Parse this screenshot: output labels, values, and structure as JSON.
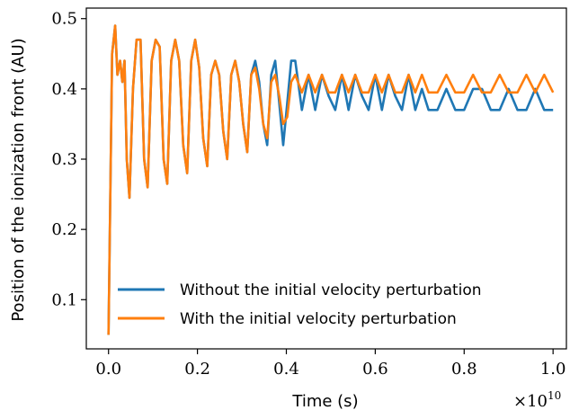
{
  "chart_data": {
    "type": "line",
    "xlabel": "Time (s)",
    "ylabel": "Position of the ionization front (AU)",
    "x_offset_label": "×10",
    "x_offset_exponent": "10",
    "xlim": [
      -0.05,
      1.03
    ],
    "ylim": [
      0.03,
      0.515
    ],
    "x_ticks": [
      "0.0",
      "0.2",
      "0.4",
      "0.6",
      "0.8",
      "1.0"
    ],
    "y_ticks": [
      "0.1",
      "0.2",
      "0.3",
      "0.4",
      "0.5"
    ],
    "legend_position": "lower-left",
    "grid": false,
    "colors": {
      "series1": "#1f77b4",
      "series2": "#ff7f0e"
    },
    "series": [
      {
        "name": "Without the initial velocity perturbation",
        "x": [
          0.0,
          0.008,
          0.015,
          0.02,
          0.026,
          0.031,
          0.036,
          0.041,
          0.047,
          0.055,
          0.063,
          0.072,
          0.08,
          0.088,
          0.097,
          0.106,
          0.115,
          0.124,
          0.132,
          0.141,
          0.15,
          0.159,
          0.168,
          0.177,
          0.186,
          0.195,
          0.204,
          0.213,
          0.222,
          0.231,
          0.24,
          0.249,
          0.258,
          0.267,
          0.276,
          0.285,
          0.294,
          0.303,
          0.312,
          0.321,
          0.33,
          0.339,
          0.348,
          0.357,
          0.366,
          0.375,
          0.384,
          0.393,
          0.402,
          0.411,
          0.42,
          0.435,
          0.45,
          0.465,
          0.48,
          0.495,
          0.51,
          0.525,
          0.54,
          0.555,
          0.57,
          0.585,
          0.6,
          0.615,
          0.63,
          0.645,
          0.66,
          0.675,
          0.69,
          0.705,
          0.72,
          0.74,
          0.76,
          0.78,
          0.8,
          0.82,
          0.84,
          0.86,
          0.88,
          0.9,
          0.92,
          0.94,
          0.96,
          0.98,
          1.0
        ],
        "y": [
          0.05,
          0.45,
          0.49,
          0.42,
          0.44,
          0.41,
          0.44,
          0.3,
          0.245,
          0.4,
          0.47,
          0.47,
          0.3,
          0.26,
          0.44,
          0.47,
          0.46,
          0.3,
          0.265,
          0.44,
          0.47,
          0.44,
          0.32,
          0.28,
          0.44,
          0.47,
          0.43,
          0.33,
          0.29,
          0.42,
          0.44,
          0.42,
          0.34,
          0.3,
          0.42,
          0.44,
          0.41,
          0.35,
          0.31,
          0.42,
          0.44,
          0.41,
          0.35,
          0.32,
          0.42,
          0.44,
          0.38,
          0.32,
          0.38,
          0.44,
          0.44,
          0.37,
          0.42,
          0.37,
          0.42,
          0.39,
          0.37,
          0.42,
          0.37,
          0.42,
          0.39,
          0.37,
          0.42,
          0.37,
          0.42,
          0.39,
          0.37,
          0.42,
          0.37,
          0.4,
          0.37,
          0.37,
          0.4,
          0.37,
          0.37,
          0.4,
          0.4,
          0.37,
          0.37,
          0.4,
          0.37,
          0.37,
          0.4,
          0.37,
          0.37
        ]
      },
      {
        "name": "With the initial velocity perturbation",
        "x": [
          0.0,
          0.008,
          0.015,
          0.02,
          0.026,
          0.031,
          0.036,
          0.041,
          0.047,
          0.055,
          0.063,
          0.072,
          0.08,
          0.088,
          0.097,
          0.106,
          0.115,
          0.124,
          0.132,
          0.141,
          0.15,
          0.159,
          0.168,
          0.177,
          0.186,
          0.195,
          0.204,
          0.213,
          0.222,
          0.231,
          0.24,
          0.249,
          0.258,
          0.267,
          0.276,
          0.285,
          0.294,
          0.303,
          0.312,
          0.321,
          0.33,
          0.339,
          0.348,
          0.357,
          0.366,
          0.375,
          0.384,
          0.393,
          0.402,
          0.411,
          0.42,
          0.435,
          0.45,
          0.465,
          0.48,
          0.495,
          0.51,
          0.525,
          0.54,
          0.555,
          0.57,
          0.585,
          0.6,
          0.615,
          0.63,
          0.645,
          0.66,
          0.675,
          0.69,
          0.705,
          0.72,
          0.74,
          0.76,
          0.78,
          0.8,
          0.82,
          0.84,
          0.86,
          0.88,
          0.9,
          0.92,
          0.94,
          0.96,
          0.98,
          1.0
        ],
        "y": [
          0.05,
          0.45,
          0.49,
          0.42,
          0.44,
          0.41,
          0.44,
          0.3,
          0.245,
          0.4,
          0.47,
          0.47,
          0.3,
          0.26,
          0.44,
          0.47,
          0.46,
          0.3,
          0.265,
          0.44,
          0.47,
          0.44,
          0.32,
          0.28,
          0.44,
          0.47,
          0.43,
          0.33,
          0.29,
          0.42,
          0.44,
          0.42,
          0.34,
          0.3,
          0.42,
          0.44,
          0.41,
          0.35,
          0.31,
          0.42,
          0.43,
          0.4,
          0.35,
          0.33,
          0.41,
          0.42,
          0.39,
          0.35,
          0.36,
          0.41,
          0.42,
          0.395,
          0.42,
          0.395,
          0.42,
          0.395,
          0.395,
          0.42,
          0.395,
          0.42,
          0.395,
          0.395,
          0.42,
          0.395,
          0.42,
          0.395,
          0.395,
          0.42,
          0.395,
          0.42,
          0.395,
          0.395,
          0.42,
          0.395,
          0.395,
          0.42,
          0.395,
          0.395,
          0.42,
          0.395,
          0.395,
          0.42,
          0.395,
          0.42,
          0.395
        ]
      }
    ]
  }
}
